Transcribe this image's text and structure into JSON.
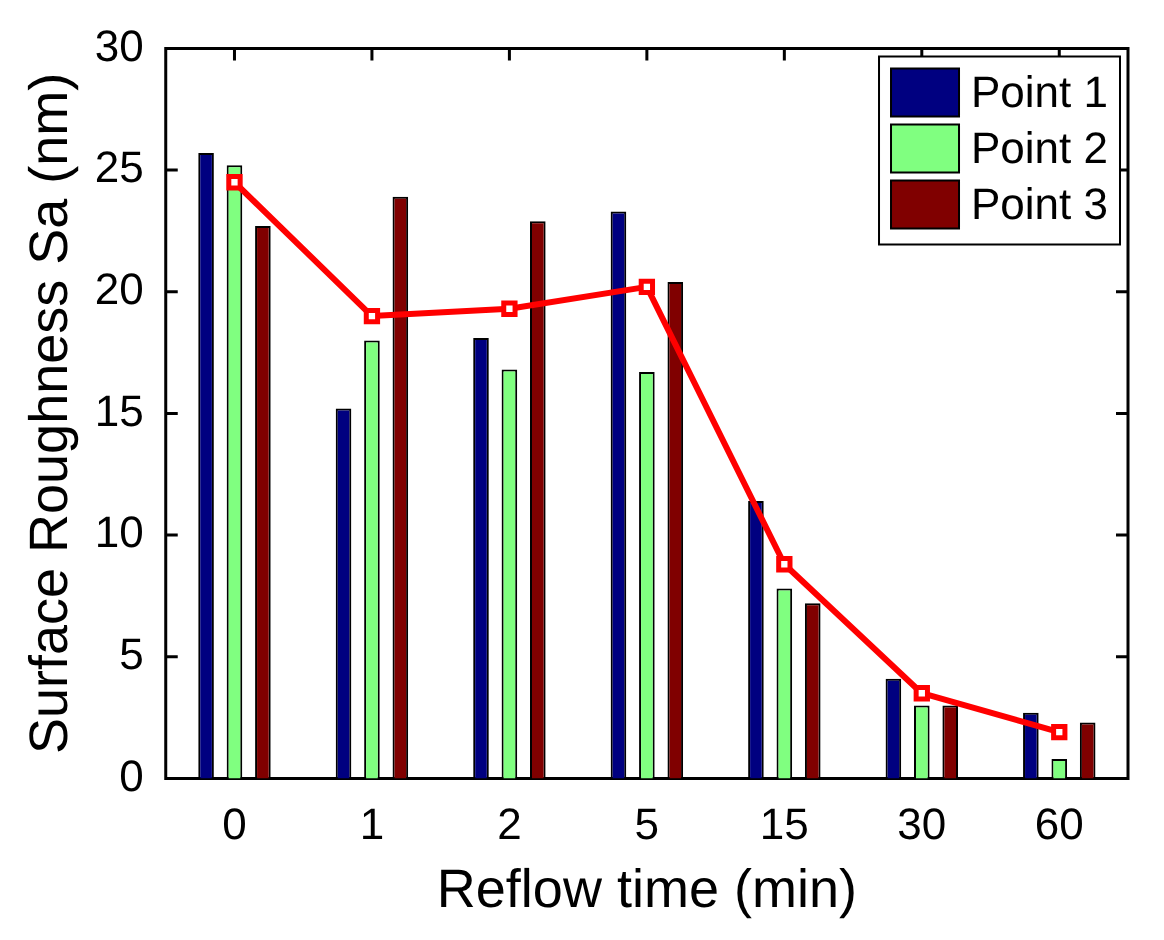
{
  "chart_data": {
    "type": "bar",
    "xlabel": "Reflow time (min)",
    "ylabel": "Surface Roughness Sa (nm)",
    "categories": [
      "0",
      "1",
      "2",
      "5",
      "15",
      "30",
      "60"
    ],
    "series": [
      {
        "name": "Point 1",
        "color": "#000080",
        "values": [
          25.7,
          15.2,
          18.1,
          23.3,
          11.4,
          4.1,
          2.7
        ]
      },
      {
        "name": "Point 2",
        "color": "#80ff80",
        "values": [
          25.2,
          18.0,
          16.8,
          16.7,
          7.8,
          3.0,
          0.8
        ]
      },
      {
        "name": "Point 3",
        "color": "#800000",
        "values": [
          22.7,
          23.9,
          22.9,
          20.4,
          7.2,
          3.0,
          2.3
        ]
      },
      {
        "type": "line",
        "color": "#ff0000",
        "marker": "square",
        "values": [
          24.5,
          19.0,
          19.3,
          20.2,
          8.8,
          3.5,
          1.9
        ]
      }
    ],
    "ylim": [
      0,
      30
    ],
    "yticks": [
      0,
      5,
      10,
      15,
      20,
      25,
      30
    ],
    "grid": false,
    "legend": "top right"
  }
}
